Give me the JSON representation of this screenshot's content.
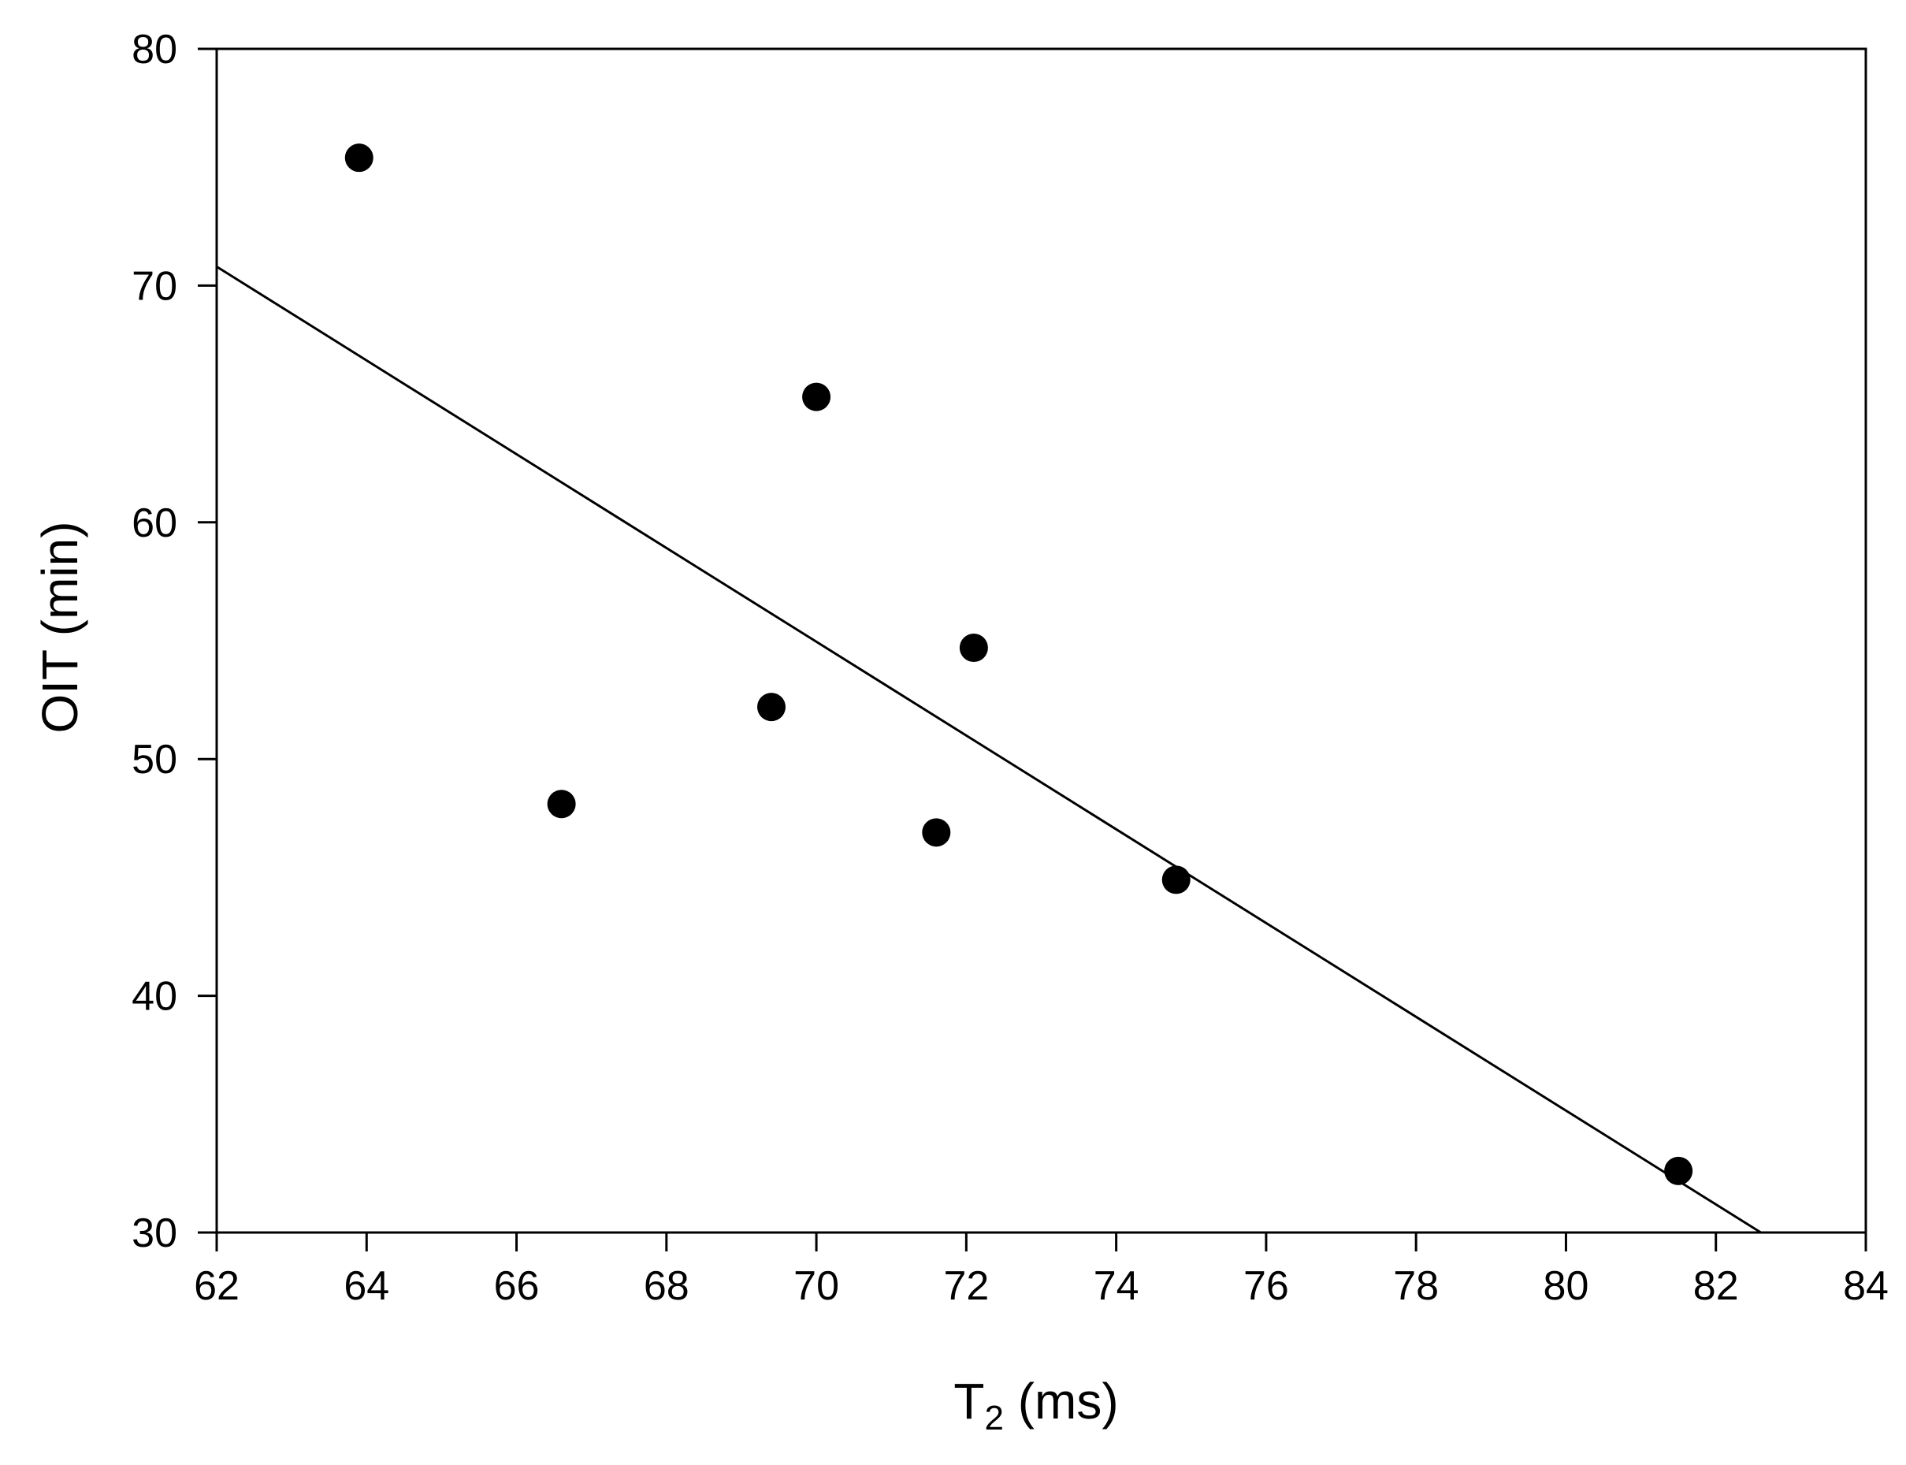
{
  "chart_data": {
    "type": "scatter",
    "title": "",
    "xlabel": {
      "main": "T",
      "subscript": "2",
      "suffix": " (ms)"
    },
    "ylabel": "OIT (min)",
    "xlim": [
      62,
      84
    ],
    "ylim": [
      30,
      80
    ],
    "xticks": [
      62,
      64,
      66,
      68,
      70,
      72,
      74,
      76,
      78,
      80,
      82,
      84
    ],
    "yticks": [
      30,
      40,
      50,
      60,
      70,
      80
    ],
    "grid": false,
    "legend": "none",
    "colors": {
      "marker": "#000000",
      "line": "#000000",
      "axis": "#000000"
    },
    "series": [
      {
        "points": [
          {
            "x": 63.9,
            "y": 75.4
          },
          {
            "x": 66.6,
            "y": 48.1
          },
          {
            "x": 69.4,
            "y": 52.2
          },
          {
            "x": 70.0,
            "y": 65.3
          },
          {
            "x": 71.6,
            "y": 46.9
          },
          {
            "x": 72.1,
            "y": 54.7
          },
          {
            "x": 74.8,
            "y": 44.9
          },
          {
            "x": 81.5,
            "y": 32.6
          }
        ]
      }
    ],
    "fit_line": {
      "x": [
        62.0,
        82.6
      ],
      "y": [
        70.8,
        30.0
      ]
    }
  }
}
